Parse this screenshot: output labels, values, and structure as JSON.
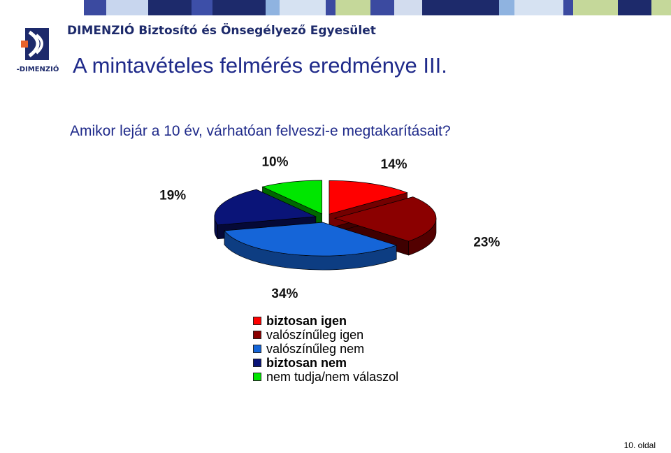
{
  "header": {
    "company_name": "DIMENZIÓ Biztosító és Önsegélyező Egyesület",
    "logo_text": "-DIMENZIÓ"
  },
  "slide": {
    "title": "A mintavételes felmérés eredménye III.",
    "question": "Amikor lejár a 10 év, várhatóan felveszi-e megtakarításait?",
    "page_number": "10. oldal"
  },
  "colors": {
    "topbar_dark": "#1d2a6b",
    "topbar_mid": "#3b4aa0",
    "topbar_light_blue": "#8fb3e0",
    "topbar_green": "#c5d89a",
    "title_blue": "#1f2a8a"
  },
  "chart_data": {
    "type": "pie",
    "style": "3d-exploded",
    "slices": [
      {
        "label": "biztosan igen",
        "value": 14,
        "display": "14%",
        "color": "#ff0000"
      },
      {
        "label": "valószínűleg igen",
        "value": 23,
        "display": "23%",
        "color": "#8b0000"
      },
      {
        "label": "valószínűleg nem",
        "value": 34,
        "display": "34%",
        "color": "#1565d8"
      },
      {
        "label": "biztosan nem",
        "value": 19,
        "display": "19%",
        "color": "#0a1478"
      },
      {
        "label": "nem tudja/nem válaszol",
        "value": 10,
        "display": "10%",
        "color": "#00e600"
      }
    ],
    "legend_position": "bottom"
  }
}
